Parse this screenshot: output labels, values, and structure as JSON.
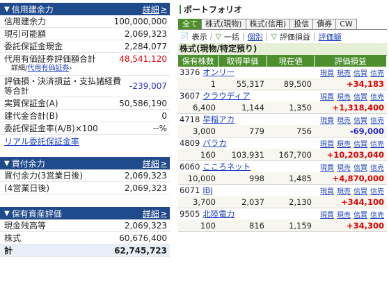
{
  "credit": {
    "title": "信用建余力",
    "more": "詳細",
    "rows": [
      {
        "label": "信用建余力",
        "value": "100,000,000"
      },
      {
        "label": "現引可能額",
        "value": "2,069,323"
      },
      {
        "label": "委託保証金現金",
        "value": "2,284,077"
      }
    ],
    "collateral_label": "代用有価証券評価額合計",
    "collateral_value": "48,541,120",
    "collateral_detail": "詳細",
    "collateral_link": "代用有価証券",
    "pl_label": "評価損・決済損益・支払諸経費等合計",
    "pl_value": "-239,007",
    "rows2": [
      {
        "label": "実質保証金(A)",
        "value": "50,586,190"
      },
      {
        "label": "建代金合計(B)",
        "value": "0"
      },
      {
        "label": "委託保証金率(A/B)×100",
        "value": "--%"
      }
    ],
    "realtime_link": "リアル委託保証金率"
  },
  "buying": {
    "title": "買付余力",
    "more": "詳細",
    "rows": [
      {
        "label": "買付余力(3営業日後)",
        "value": "2,069,323"
      },
      {
        "label": "(4営業日後)",
        "value": "2,069,323"
      }
    ]
  },
  "assets": {
    "title": "保有資産評価",
    "more": "詳細",
    "rows": [
      {
        "label": "現金残高等",
        "value": "2,069,323"
      },
      {
        "label": "株式",
        "value": "60,676,400"
      }
    ],
    "total_label": "計",
    "total_value": "62,745,723"
  },
  "portfolio": {
    "title": "ポートフォリオ",
    "tabs": [
      "全て",
      "株式(現物)",
      "株式(信用)",
      "投信",
      "債券",
      "CW"
    ],
    "tools": {
      "display": "表示",
      "batch": "一括",
      "individual": "個別",
      "pl": "評価損益",
      "amount": "評価額"
    },
    "section": "株式(現物/特定預り)",
    "columns": [
      "保有株数",
      "取得単価",
      "現在値",
      "評価損益"
    ],
    "actions": [
      "現買",
      "現売",
      "信買",
      "信売"
    ],
    "stocks": [
      {
        "code": "3376",
        "name": "オンリー",
        "qty": "1",
        "cost": "55,317",
        "price": "89,500",
        "pl": "+34,183",
        "color": "#e00000"
      },
      {
        "code": "3607",
        "name": "クラウディア",
        "qty": "6,400",
        "cost": "1,144",
        "price": "1,350",
        "pl": "+1,318,400",
        "color": "#e00000"
      },
      {
        "code": "4718",
        "name": "早稲アカ",
        "qty": "3,000",
        "cost": "779",
        "price": "756",
        "pl": "-69,000",
        "color": "#2a2ad0"
      },
      {
        "code": "4809",
        "name": "パラカ",
        "qty": "160",
        "cost": "103,931",
        "price": "167,700",
        "pl": "+10,203,040",
        "color": "#e00000"
      },
      {
        "code": "6060",
        "name": "こころネット",
        "qty": "10,000",
        "cost": "998",
        "price": "1,485",
        "pl": "+4,870,000",
        "color": "#e00000"
      },
      {
        "code": "6071",
        "name": "IBJ",
        "qty": "3,700",
        "cost": "2,037",
        "price": "2,130",
        "pl": "+344,100",
        "color": "#e00000"
      },
      {
        "code": "9505",
        "name": "北陸電力",
        "qty": "100",
        "cost": "816",
        "price": "1,159",
        "pl": "+34,300",
        "color": "#e00000"
      }
    ]
  }
}
